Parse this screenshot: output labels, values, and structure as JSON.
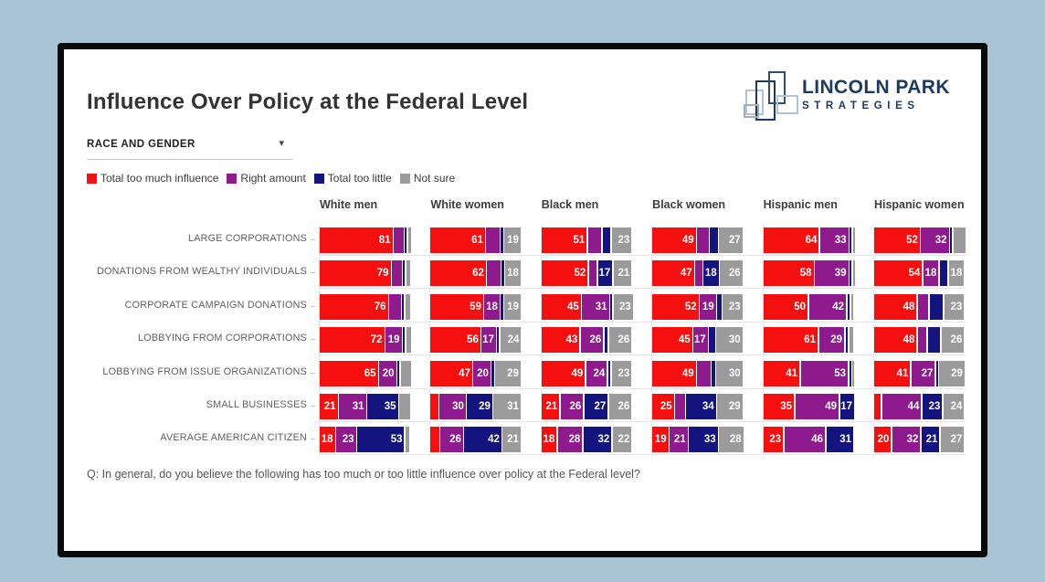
{
  "header": {
    "title": "Influence Over Policy at the Federal Level"
  },
  "filter": {
    "label": "RACE AND GENDER",
    "caret": "▾"
  },
  "logo": {
    "line1": "LINCOLN PARK",
    "line2": "STRATEGIES"
  },
  "question": "Q: In general, do you believe the following has too much or too little influence over policy at the Federal level?",
  "chart_data": {
    "type": "bar",
    "variant": "horizontal-stacked-small-multiples",
    "xlim": [
      0,
      100
    ],
    "label_min_value": 17,
    "categories": [
      "LARGE CORPORATIONS",
      "DONATIONS FROM WEALTHY INDIVIDUALS",
      "CORPORATE CAMPAIGN DONATIONS",
      "LOBBYING FROM CORPORATIONS",
      "LOBBYING FROM ISSUE ORGANIZATIONS",
      "SMALL BUSINESSES",
      "AVERAGE AMERICAN CITIZEN"
    ],
    "segment_series": [
      {
        "name": "Total too much influence",
        "color": "#f50f0f"
      },
      {
        "name": "Right amount",
        "color": "#8e1a8e"
      },
      {
        "name": "Total too little",
        "color": "#14147e"
      },
      {
        "name": "Not sure",
        "color": "#9b9b9b"
      }
    ],
    "groups": [
      {
        "label": "White men",
        "values": [
          [
            81,
            12,
            2,
            5
          ],
          [
            79,
            12,
            3,
            6
          ],
          [
            76,
            14,
            3,
            7
          ],
          [
            72,
            19,
            2,
            7
          ],
          [
            65,
            20,
            2,
            13
          ],
          [
            21,
            31,
            35,
            13
          ],
          [
            18,
            23,
            53,
            6
          ]
        ]
      },
      {
        "label": "White women",
        "values": [
          [
            61,
            16,
            4,
            19
          ],
          [
            62,
            16,
            4,
            18
          ],
          [
            59,
            18,
            4,
            19
          ],
          [
            56,
            17,
            3,
            24
          ],
          [
            47,
            20,
            4,
            29
          ],
          [
            10,
            30,
            29,
            31
          ],
          [
            11,
            26,
            42,
            21
          ]
        ]
      },
      {
        "label": "Black men",
        "values": [
          [
            51,
            16,
            10,
            23
          ],
          [
            52,
            10,
            17,
            21
          ],
          [
            45,
            31,
            1,
            23
          ],
          [
            43,
            26,
            5,
            26
          ],
          [
            49,
            24,
            4,
            23
          ],
          [
            21,
            26,
            27,
            26
          ],
          [
            18,
            28,
            32,
            22
          ]
        ]
      },
      {
        "label": "Black women",
        "values": [
          [
            49,
            14,
            10,
            27
          ],
          [
            47,
            9,
            18,
            26
          ],
          [
            52,
            19,
            6,
            23
          ],
          [
            45,
            17,
            8,
            30
          ],
          [
            49,
            16,
            5,
            30
          ],
          [
            25,
            12,
            34,
            29
          ],
          [
            19,
            21,
            33,
            28
          ]
        ]
      },
      {
        "label": "Hispanic men",
        "values": [
          [
            64,
            33,
            1,
            2
          ],
          [
            58,
            39,
            2,
            1
          ],
          [
            50,
            42,
            4,
            4
          ],
          [
            61,
            29,
            4,
            6
          ],
          [
            41,
            53,
            3,
            3
          ],
          [
            35,
            49,
            17,
            0
          ],
          [
            23,
            46,
            31,
            0
          ]
        ]
      },
      {
        "label": "Hispanic women",
        "values": [
          [
            52,
            32,
            1,
            15
          ],
          [
            54,
            18,
            10,
            18
          ],
          [
            48,
            13,
            16,
            23
          ],
          [
            48,
            11,
            15,
            26
          ],
          [
            41,
            27,
            3,
            29
          ],
          [
            9,
            44,
            23,
            24
          ],
          [
            20,
            32,
            21,
            27
          ]
        ]
      }
    ]
  }
}
